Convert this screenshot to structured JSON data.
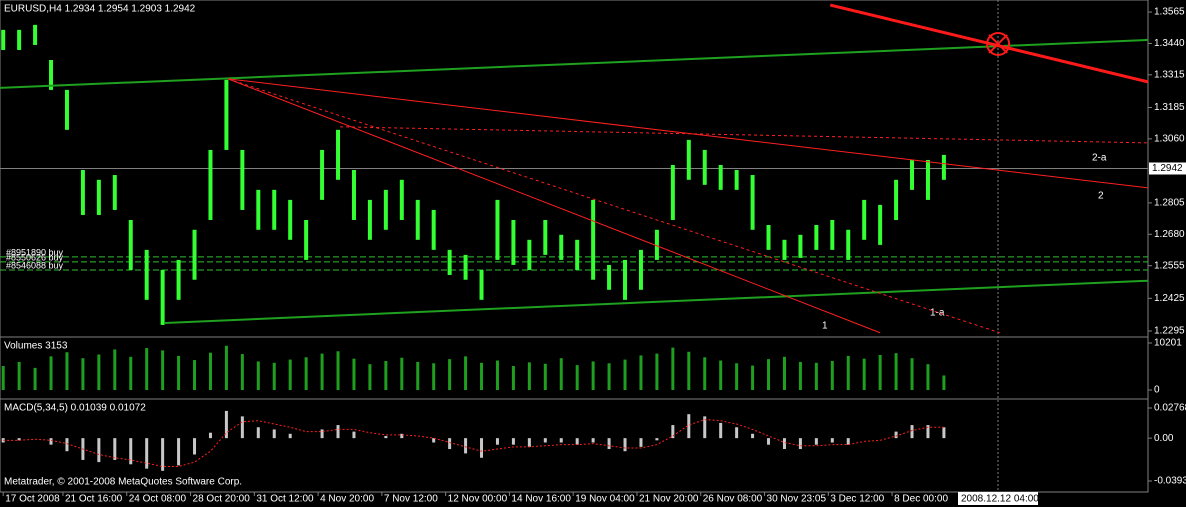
{
  "chart_data": [
    {
      "type": "range",
      "title": "EURUSD,H4  1.2934 1.2954 1.2903 1.2942",
      "color": "#33ff33",
      "high": [
        1.3494,
        1.3494,
        1.3514,
        1.3374,
        1.3255,
        1.2936,
        1.2897,
        1.2916,
        1.2737,
        1.2618,
        1.2538,
        1.2578,
        1.2698,
        1.3016,
        1.3295,
        1.3016,
        1.2857,
        1.2857,
        1.2817,
        1.2737,
        1.3016,
        1.3096,
        1.2936,
        1.2817,
        1.2857,
        1.2897,
        1.2817,
        1.2777,
        1.2618,
        1.2598,
        1.2538,
        1.2817,
        1.2737,
        1.2658,
        1.2737,
        1.2678,
        1.2658,
        1.2817,
        1.2558,
        1.2578,
        1.2618,
        1.2698,
        1.2956,
        1.3056,
        1.3016,
        1.2956,
        1.2936,
        1.2916,
        1.2717,
        1.2658,
        1.2678,
        1.2717,
        1.2737,
        1.2698,
        1.2817,
        1.2797,
        1.2897,
        1.2976,
        1.2976,
        1.2996
      ],
      "low": [
        1.3414,
        1.3414,
        1.3434,
        1.3255,
        1.3096,
        1.2757,
        1.2757,
        1.2777,
        1.2538,
        1.2419,
        1.2319,
        1.2419,
        1.2499,
        1.2737,
        1.3016,
        1.2777,
        1.2698,
        1.2698,
        1.2658,
        1.2578,
        1.2817,
        1.2897,
        1.2737,
        1.2658,
        1.2698,
        1.2737,
        1.2658,
        1.2618,
        1.2518,
        1.2499,
        1.2419,
        1.2578,
        1.2558,
        1.2538,
        1.2598,
        1.2578,
        1.2538,
        1.2499,
        1.2459,
        1.2419,
        1.2459,
        1.2578,
        1.2737,
        1.2897,
        1.2877,
        1.2857,
        1.2857,
        1.2698,
        1.2618,
        1.2578,
        1.2586,
        1.2618,
        1.2618,
        1.2578,
        1.2658,
        1.2638,
        1.2737,
        1.2857,
        1.2817,
        1.2897
      ],
      "xlim": [
        -0.2,
        71.8
      ],
      "ylim": [
        1.2275,
        1.3613
      ],
      "yticks": [
        1.3565,
        {
          "value": 1.344,
          "label": "1.3440"
        },
        1.3315,
        1.3185,
        {
          "value": 1.306,
          "label": "1.3060"
        },
        1.2805,
        {
          "value": 1.268,
          "label": "1.2680"
        },
        1.2555,
        1.2425,
        1.2295
      ],
      "current_price": 1.2942,
      "xticks": [
        {
          "value": 0,
          "label": "17 Oct 2008"
        },
        {
          "value": 3.75,
          "label": "21 Oct 16:00"
        },
        {
          "value": 7.75,
          "label": "24 Oct 08:00"
        },
        {
          "value": 11.75,
          "label": "28 Oct 20:00"
        },
        {
          "value": 15.75,
          "label": "31 Oct 12:00"
        },
        {
          "value": 19.75,
          "label": "4 Nov 20:00"
        },
        {
          "value": 23.75,
          "label": "7 Nov 12:00"
        },
        {
          "value": 27.75,
          "label": "12 Nov 00:00"
        },
        {
          "value": 31.75,
          "label": "14 Nov 16:00"
        },
        {
          "value": 35.75,
          "label": "19 Nov 04:00"
        },
        {
          "value": 39.75,
          "label": "21 Nov 20:00"
        },
        {
          "value": 43.75,
          "label": "26 Nov 08:00"
        },
        {
          "value": 47.75,
          "label": "30 Nov 23:05"
        },
        {
          "value": 51.75,
          "label": "3 Dec 12:00"
        },
        {
          "value": 55.75,
          "label": "8 Dec 00:00"
        }
      ],
      "cursor_label": "2008.12.12 04:00",
      "trendlines": [
        {
          "x": [
            -0.2,
            71.8
          ],
          "y": [
            1.3263,
            1.3454
          ],
          "color": "#1fa01f",
          "width": 2,
          "dash": false
        },
        {
          "x": [
            10.15,
            71.8
          ],
          "y": [
            1.2327,
            1.2495
          ],
          "color": "#1fa01f",
          "width": 2,
          "dash": false
        },
        {
          "x": [
            51.87,
            71.8
          ],
          "y": [
            1.3593,
            1.3287
          ],
          "color": "#ff1a1a",
          "width": 3,
          "dash": false
        },
        {
          "x": [
            14.1,
            71.8
          ],
          "y": [
            1.3299,
            1.2865
          ],
          "color": "#ff2020",
          "width": 1,
          "dash": false
        },
        {
          "x": [
            14.1,
            55.0
          ],
          "y": [
            1.3299,
            1.2288
          ],
          "color": "#ff2020",
          "width": 1,
          "dash": false
        },
        {
          "x": [
            14.1,
            62.5
          ],
          "y": [
            1.3299,
            1.2288
          ],
          "color": "#ff2020",
          "width": 1,
          "dash": true
        },
        {
          "x": [
            21.13,
            71.8
          ],
          "y": [
            1.3108,
            1.3044
          ],
          "color": "#ff2020",
          "width": 1,
          "dash": true
        }
      ],
      "line_labels": [
        "1",
        "1-a",
        "2",
        "2-a"
      ],
      "orders": [
        {
          "label": "#8951890 buy",
          "price": 1.259
        },
        {
          "label": "#8550626 buy",
          "price": 1.257
        },
        {
          "label": "#8546088 buy",
          "price": 1.2538
        }
      ],
      "marker": {
        "x": 62.4,
        "y": 1.3438
      },
      "watermark": "Metatrader, © 2001-2008 MetaQuotes Software Corp."
    },
    {
      "type": "bar",
      "title": "Volumes 3153",
      "color": "#1f9f1f",
      "values": [
        5200,
        6100,
        4800,
        7300,
        8200,
        6900,
        7700,
        8800,
        7200,
        9100,
        8600,
        7400,
        6500,
        8100,
        9600,
        7800,
        6200,
        5900,
        6600,
        7100,
        7900,
        8400,
        6800,
        5600,
        6300,
        7000,
        6100,
        5800,
        6700,
        7300,
        5900,
        6400,
        5200,
        6000,
        5700,
        6900,
        5400,
        6200,
        5800,
        6600,
        7500,
        7900,
        9200,
        8300,
        7100,
        6400,
        5800,
        5300,
        6700,
        7200,
        6100,
        5900,
        6300,
        7400,
        6800,
        7600,
        8000,
        6900,
        5600,
        3153
      ],
      "ylim": [
        -1736,
        11286
      ],
      "yticks": [
        10201,
        0
      ]
    },
    {
      "type": "macd",
      "title": "MACD(5,34,5) 0.01039 0.01072",
      "series": [
        {
          "color": "#c8c8c8",
          "values": [
            -0.004,
            -0.002,
            0,
            -0.006,
            -0.012,
            -0.02,
            -0.022,
            -0.02,
            -0.024,
            -0.028,
            -0.03,
            -0.025,
            -0.015,
            0.005,
            0.025,
            0.02,
            0.01,
            0.008,
            0.004,
            0,
            0.008,
            0.012,
            0.006,
            0,
            0.002,
            0.004,
            0,
            -0.004,
            -0.01,
            -0.014,
            -0.018,
            -0.006,
            -0.006,
            -0.008,
            -0.004,
            -0.004,
            -0.006,
            -0.004,
            -0.01,
            -0.012,
            -0.008,
            -0.002,
            0.012,
            0.022,
            0.02,
            0.014,
            0.01,
            0.004,
            -0.006,
            -0.01,
            -0.01,
            -0.006,
            -0.004,
            -0.006,
            0,
            0,
            0.006,
            0.012,
            0.012,
            0.01
          ]
        },
        {
          "color": "#ff2020",
          "values": [
            -0.002,
            -0.002,
            -0.001,
            -0.002,
            -0.005,
            -0.01,
            -0.015,
            -0.018,
            -0.02,
            -0.023,
            -0.026,
            -0.026,
            -0.022,
            -0.012,
            0.005,
            0.015,
            0.016,
            0.013,
            0.01,
            0.006,
            0.006,
            0.008,
            0.008,
            0.005,
            0.003,
            0.003,
            0.002,
            0,
            -0.004,
            -0.008,
            -0.012,
            -0.01,
            -0.008,
            -0.008,
            -0.007,
            -0.006,
            -0.006,
            -0.005,
            -0.007,
            -0.009,
            -0.009,
            -0.006,
            0.002,
            0.012,
            0.017,
            0.016,
            0.013,
            0.008,
            0.002,
            -0.004,
            -0.007,
            -0.007,
            -0.006,
            -0.006,
            -0.003,
            -0.002,
            0.002,
            0.007,
            0.01,
            0.01
          ]
        }
      ],
      "ylim": [
        -0.03934,
        0.02768
      ],
      "yticks": [
        0.02768,
        {
          "value": 0,
          "label": "0.00"
        },
        -0.03934
      ]
    }
  ]
}
